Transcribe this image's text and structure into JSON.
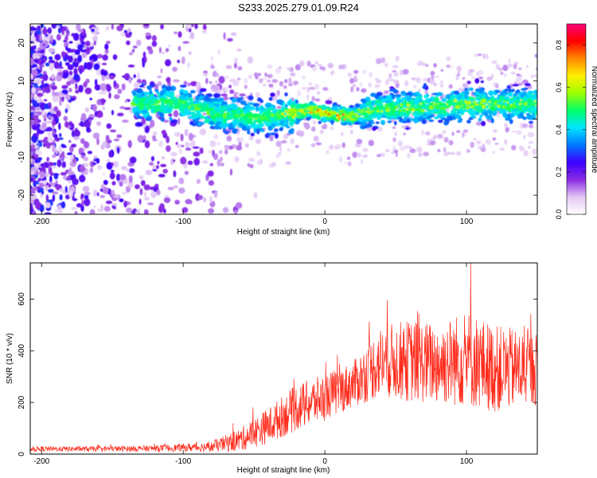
{
  "page": {
    "title": "S233.2025.279.01.09.R24"
  },
  "chart_data": [
    {
      "type": "heatmap",
      "title": "S233.2025.279.01.09.R24",
      "xlabel": "Height of straight line (km)",
      "ylabel": "Frequency (Hz)",
      "xlim": [
        -208,
        150
      ],
      "ylim": [
        -25,
        25
      ],
      "xticks": [
        -200,
        -100,
        0,
        100
      ],
      "xtick_labels": [
        "-200",
        "-100",
        "0",
        "100"
      ],
      "yticks": [
        -20,
        -10,
        0,
        10,
        20
      ],
      "ytick_labels": [
        "-20",
        "-10",
        "0",
        "10",
        "20"
      ],
      "ridge_frequency_hz": [
        {
          "x": -130,
          "y": 4
        },
        {
          "x": -100,
          "y": 4
        },
        {
          "x": -85,
          "y": 2
        },
        {
          "x": -70,
          "y": 1
        },
        {
          "x": -50,
          "y": 0.5
        },
        {
          "x": -30,
          "y": 1
        },
        {
          "x": -10,
          "y": 2.5
        },
        {
          "x": 0,
          "y": 1.5
        },
        {
          "x": 10,
          "y": 1
        },
        {
          "x": 20,
          "y": 1
        },
        {
          "x": 40,
          "y": 3
        },
        {
          "x": 60,
          "y": 3
        },
        {
          "x": 80,
          "y": 3.5
        },
        {
          "x": 100,
          "y": 4
        },
        {
          "x": 120,
          "y": 4
        },
        {
          "x": 150,
          "y": 4
        }
      ],
      "colorbar": {
        "label": "Normalized spectral amplitude",
        "range": [
          0.0,
          0.9
        ],
        "ticks": [
          0.0,
          0.2,
          0.4,
          0.6,
          0.8
        ],
        "tick_labels": [
          "0.0",
          "0.2",
          "0.4",
          "0.6",
          "0.8"
        ],
        "colormap": [
          "#ffffff",
          "#e2c8f5",
          "#8a2be2",
          "#3a00ff",
          "#0077ff",
          "#00e5ff",
          "#00ff66",
          "#9cff00",
          "#ffee00",
          "#ff8800",
          "#ff0000",
          "#ff0077"
        ]
      },
      "grid": false
    },
    {
      "type": "line",
      "xlabel": "Height of straight line (km)",
      "ylabel": "SNR (10 * v/v)",
      "xlim": [
        -208,
        150
      ],
      "ylim": [
        0,
        740
      ],
      "xticks": [
        -200,
        -100,
        0,
        100
      ],
      "xtick_labels": [
        "-200",
        "-100",
        "0",
        "100"
      ],
      "yticks": [
        0,
        200,
        400,
        600
      ],
      "ytick_labels": [
        "0",
        "200",
        "400",
        "600"
      ],
      "color": "#ff2a1a",
      "grid": false,
      "series": [
        {
          "name": "SNR",
          "envelope": [
            {
              "x": -208,
              "mean": 20,
              "spread": 10
            },
            {
              "x": -160,
              "mean": 20,
              "spread": 10
            },
            {
              "x": -120,
              "mean": 22,
              "spread": 12
            },
            {
              "x": -100,
              "mean": 25,
              "spread": 15
            },
            {
              "x": -80,
              "mean": 28,
              "spread": 20
            },
            {
              "x": -60,
              "mean": 55,
              "spread": 45
            },
            {
              "x": -40,
              "mean": 110,
              "spread": 70
            },
            {
              "x": -20,
              "mean": 180,
              "spread": 90
            },
            {
              "x": 0,
              "mean": 220,
              "spread": 90
            },
            {
              "x": 20,
              "mean": 270,
              "spread": 90
            },
            {
              "x": 40,
              "mean": 360,
              "spread": 140
            },
            {
              "x": 60,
              "mean": 360,
              "spread": 160
            },
            {
              "x": 80,
              "mean": 350,
              "spread": 160
            },
            {
              "x": 100,
              "mean": 370,
              "spread": 190
            },
            {
              "x": 120,
              "mean": 330,
              "spread": 170
            },
            {
              "x": 150,
              "mean": 330,
              "spread": 140
            }
          ],
          "peak": {
            "x": 103,
            "y": 740
          }
        }
      ]
    }
  ]
}
